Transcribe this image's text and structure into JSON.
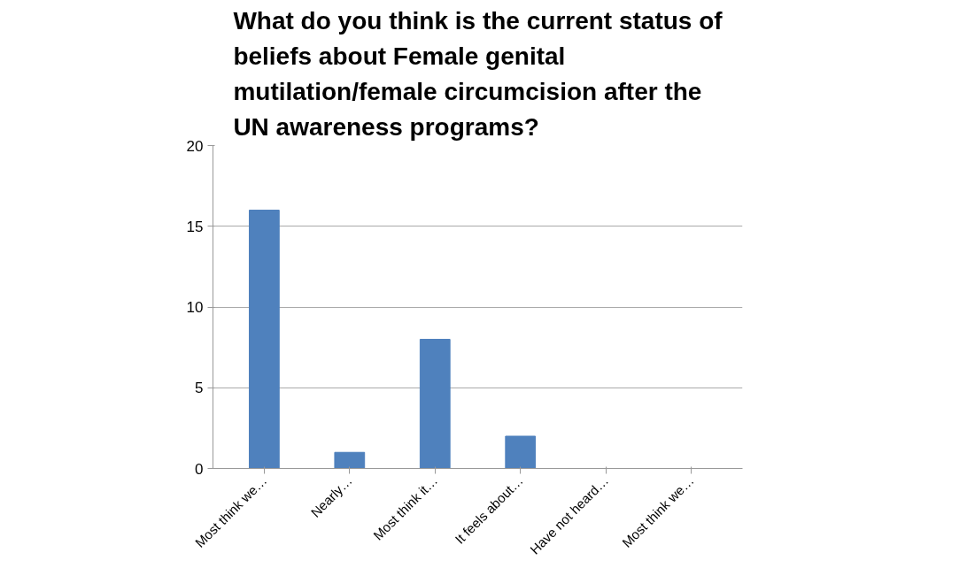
{
  "chart_data": {
    "type": "bar",
    "title": "What do you think is the current status of beliefs about Female genital mutilation/female circumcision after the UN awareness programs?",
    "categories": [
      "Most think we…",
      "Nearly…",
      "Most think it…",
      "It feels about…",
      "Have not heard…",
      "Most think we…"
    ],
    "values": [
      16,
      1,
      8,
      2,
      0,
      0
    ],
    "color": "#4f81bd",
    "ylim": [
      0,
      20
    ],
    "yticks": [
      0,
      5,
      10,
      15,
      20
    ],
    "grid": "y"
  }
}
